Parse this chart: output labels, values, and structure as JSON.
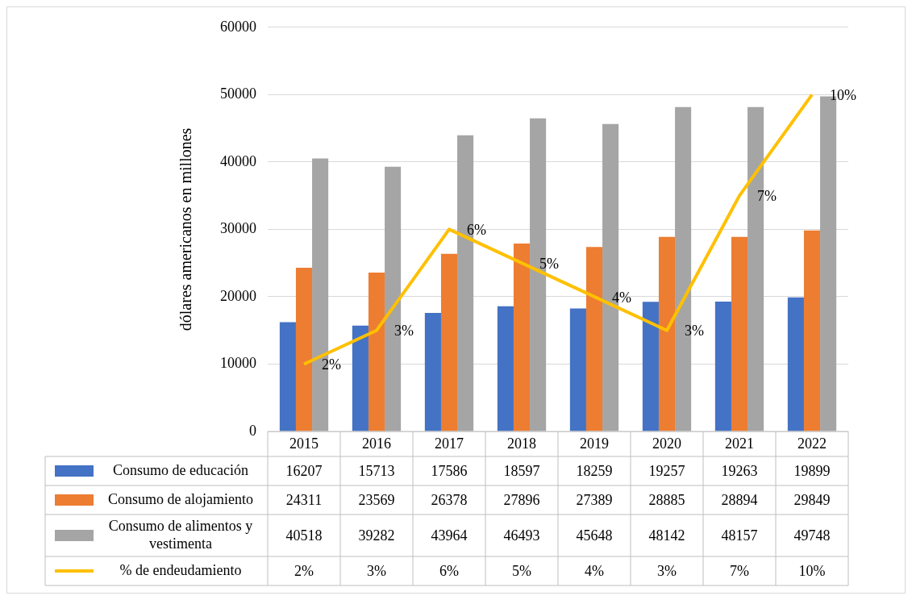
{
  "chart_data": {
    "type": "bar",
    "ylabel": "dólares americanos en millones",
    "categories": [
      "2015",
      "2016",
      "2017",
      "2018",
      "2019",
      "2020",
      "2021",
      "2022"
    ],
    "series": [
      {
        "name": "Consumo de educación",
        "color": "#4472c4",
        "values": [
          16207,
          15713,
          17586,
          18597,
          18259,
          19257,
          19263,
          19899
        ]
      },
      {
        "name": "Consumo de alojamiento",
        "color": "#ed7d31",
        "values": [
          24311,
          23569,
          26378,
          27896,
          27389,
          28885,
          28894,
          29849
        ]
      },
      {
        "name": "Consumo de alimentos y vestimenta",
        "color": "#a5a5a5",
        "values": [
          40518,
          39282,
          43964,
          46493,
          45648,
          48142,
          48157,
          49748
        ]
      },
      {
        "name": "% de endeudamiento",
        "type": "line",
        "axis": "y2",
        "color": "#ffc000",
        "values": [
          2,
          3,
          6,
          5,
          4,
          3,
          7,
          10
        ],
        "value_labels": [
          "2%",
          "3%",
          "6%",
          "5%",
          "4%",
          "3%",
          "7%",
          "10%"
        ]
      }
    ],
    "ylim": [
      0,
      60000
    ],
    "yticks": [
      0,
      10000,
      20000,
      30000,
      40000,
      50000,
      60000
    ],
    "y2lim": [
      0,
      12
    ],
    "grid": "y",
    "legend": "bottom",
    "data_labels": true
  }
}
